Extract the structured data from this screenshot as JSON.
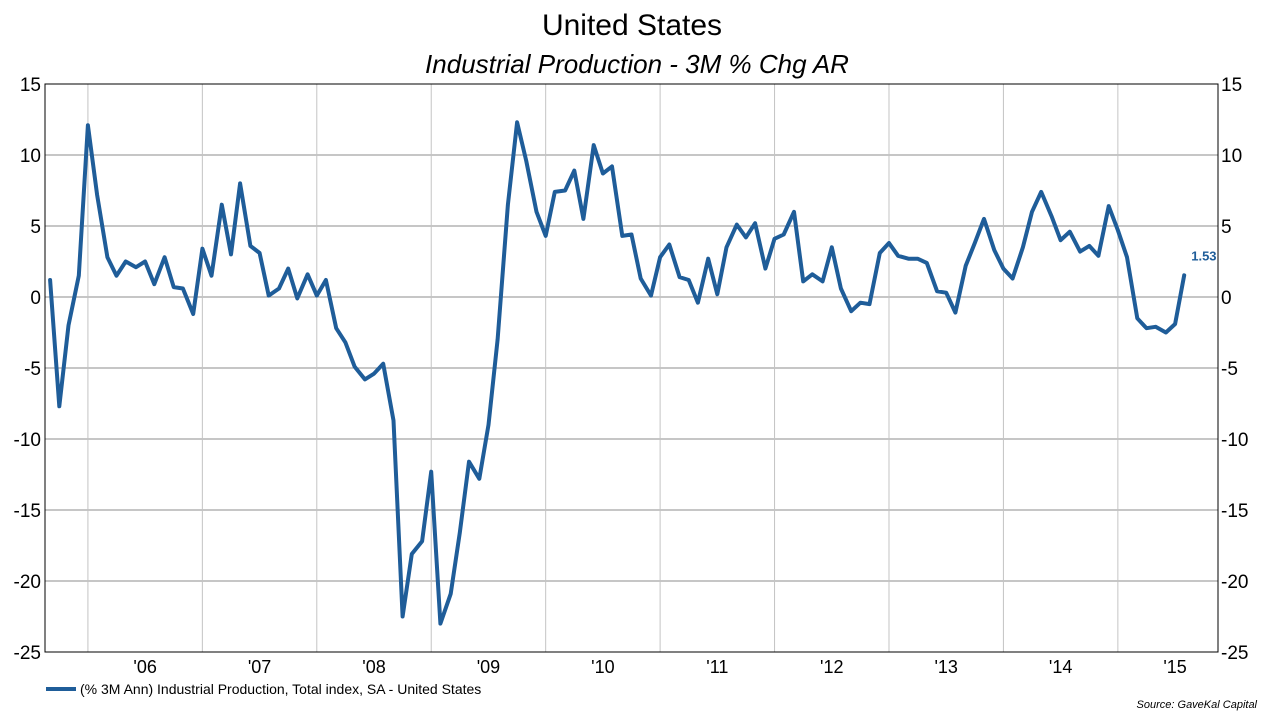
{
  "chart_data": {
    "type": "line",
    "title": "United States",
    "subtitle": "Industrial Production - 3M % Chg AR",
    "source": "Source: GaveKal Capital",
    "ylim": [
      -25,
      15
    ],
    "yticks": [
      -25,
      -20,
      -15,
      -10,
      -5,
      0,
      5,
      10,
      15
    ],
    "xlim": [
      2005.125,
      2015.375
    ],
    "xticks": [
      {
        "label": "'06",
        "value": 2006.0
      },
      {
        "label": "'07",
        "value": 2007.0
      },
      {
        "label": "'08",
        "value": 2008.0
      },
      {
        "label": "'09",
        "value": 2009.0
      },
      {
        "label": "'10",
        "value": 2010.0
      },
      {
        "label": "'11",
        "value": 2011.0
      },
      {
        "label": "'12",
        "value": 2012.0
      },
      {
        "label": "'13",
        "value": 2013.0
      },
      {
        "label": "'14",
        "value": 2014.0
      },
      {
        "label": "'15",
        "value": 2015.0
      }
    ],
    "grid": true,
    "legend_position": "bottom-left",
    "last_value_label": "1.53",
    "series": [
      {
        "name": "(% 3M Ann) Industrial Production, Total index, SA - United States",
        "color": "#1f5d99",
        "x": [
          2005.17,
          2005.25,
          2005.33,
          2005.42,
          2005.5,
          2005.58,
          2005.67,
          2005.75,
          2005.83,
          2005.92,
          2006.0,
          2006.08,
          2006.17,
          2006.25,
          2006.33,
          2006.42,
          2006.5,
          2006.58,
          2006.67,
          2006.75,
          2006.83,
          2006.92,
          2007.0,
          2007.08,
          2007.17,
          2007.25,
          2007.33,
          2007.42,
          2007.5,
          2007.58,
          2007.67,
          2007.75,
          2007.83,
          2007.92,
          2008.0,
          2008.08,
          2008.17,
          2008.25,
          2008.33,
          2008.42,
          2008.5,
          2008.58,
          2008.67,
          2008.75,
          2008.83,
          2008.92,
          2009.0,
          2009.08,
          2009.17,
          2009.25,
          2009.33,
          2009.42,
          2009.5,
          2009.58,
          2009.67,
          2009.75,
          2009.83,
          2009.92,
          2010.0,
          2010.08,
          2010.17,
          2010.25,
          2010.33,
          2010.42,
          2010.5,
          2010.58,
          2010.67,
          2010.75,
          2010.83,
          2010.92,
          2011.0,
          2011.08,
          2011.17,
          2011.25,
          2011.33,
          2011.42,
          2011.5,
          2011.58,
          2011.67,
          2011.75,
          2011.83,
          2011.92,
          2012.0,
          2012.08,
          2012.17,
          2012.25,
          2012.33,
          2012.42,
          2012.5,
          2012.58,
          2012.67,
          2012.75,
          2012.83,
          2012.92,
          2013.0,
          2013.08,
          2013.17,
          2013.25,
          2013.33,
          2013.42,
          2013.5,
          2013.58,
          2013.67,
          2013.75,
          2013.83,
          2013.92,
          2014.0,
          2014.08,
          2014.17,
          2014.25,
          2014.33,
          2014.42,
          2014.5,
          2014.58,
          2014.67,
          2014.75,
          2014.83,
          2014.92,
          2015.0,
          2015.08
        ],
        "values": [
          1.2,
          -7.7,
          -2.0,
          1.5,
          12.1,
          7.2,
          2.8,
          1.5,
          2.5,
          2.1,
          2.5,
          0.9,
          2.8,
          0.7,
          0.6,
          -1.2,
          3.4,
          1.5,
          6.5,
          3.0,
          8.0,
          3.6,
          3.1,
          0.1,
          0.6,
          2.0,
          -0.1,
          1.6,
          0.1,
          1.2,
          -2.2,
          -3.2,
          -4.9,
          -5.8,
          -5.4,
          -4.7,
          -8.7,
          -22.5,
          -18.1,
          -17.2,
          -12.3,
          -23.0,
          -20.9,
          -16.6,
          -11.6,
          -12.8,
          -9.0,
          -3.0,
          6.5,
          12.3,
          9.6,
          6.0,
          4.3,
          7.4,
          7.5,
          8.9,
          5.5,
          10.7,
          8.7,
          9.2,
          4.3,
          4.4,
          1.3,
          0.1,
          2.8,
          3.7,
          1.4,
          1.2,
          -0.4,
          2.7,
          0.2,
          3.5,
          5.1,
          4.2,
          5.2,
          2.0,
          4.1,
          4.4,
          6.0,
          1.1,
          1.6,
          1.1,
          3.5,
          0.6,
          -1.0,
          -0.4,
          -0.5,
          3.1,
          3.8,
          2.9,
          2.7,
          2.7,
          2.4,
          0.4,
          0.3,
          -1.1,
          2.2,
          3.8,
          5.5,
          3.3,
          2.0,
          1.3,
          3.5,
          6.0,
          7.4,
          5.7,
          4.0,
          4.6,
          3.2,
          3.6,
          2.9,
          6.4,
          4.7,
          2.8,
          -1.5,
          -2.2,
          -2.1,
          -2.5,
          -1.9,
          1.53
        ]
      }
    ]
  }
}
